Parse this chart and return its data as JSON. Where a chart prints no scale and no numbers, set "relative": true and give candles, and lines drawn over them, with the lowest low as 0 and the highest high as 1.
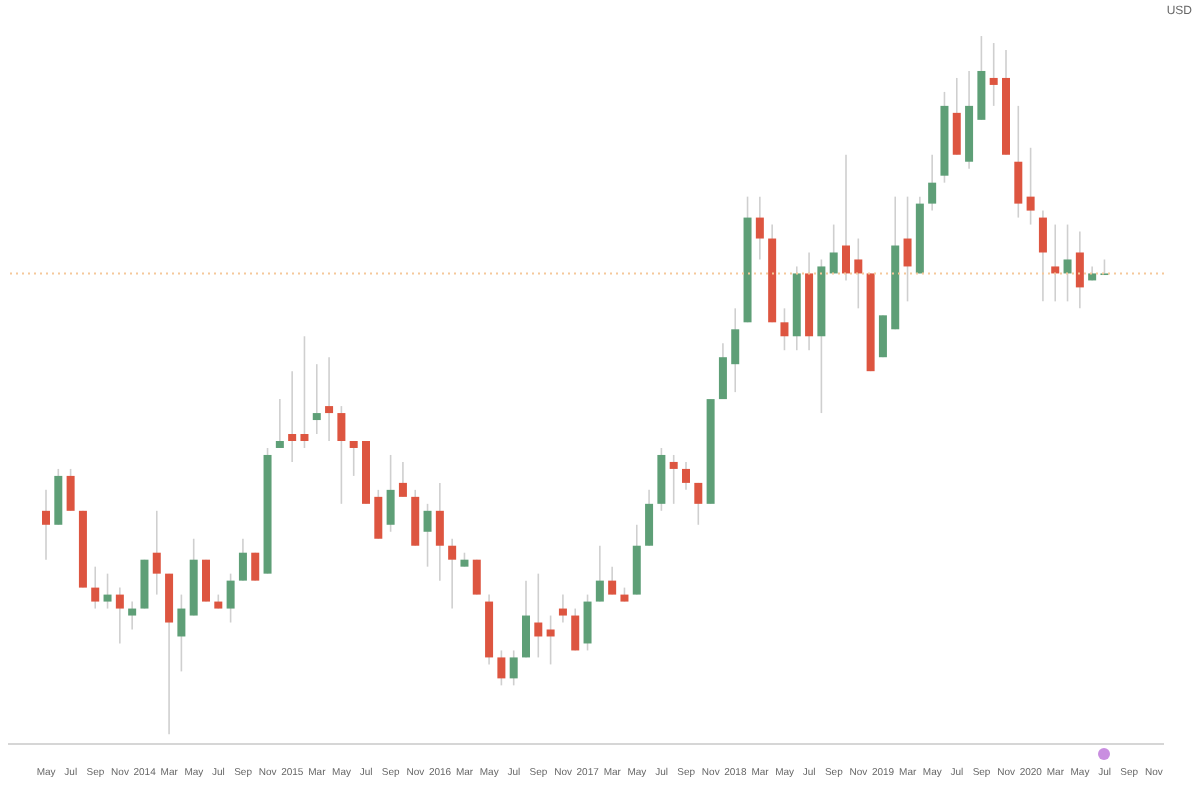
{
  "chart_data": {
    "type": "candlestick",
    "relative": true,
    "ylabel": "USD",
    "categories": [
      "May",
      null,
      "Jul",
      null,
      "Sep",
      null,
      "Nov",
      null,
      "2014",
      null,
      "Mar",
      null,
      "May",
      null,
      "Jul",
      null,
      "Sep",
      null,
      "Nov",
      null,
      "2015",
      null,
      "Mar",
      null,
      "May",
      null,
      "Jul",
      null,
      "Sep",
      null,
      "Nov",
      null,
      "2016",
      null,
      "Mar",
      null,
      "May",
      null,
      "Jul",
      null,
      "Sep",
      null,
      "Nov",
      null,
      "2017",
      null,
      "Mar",
      null,
      "May",
      null,
      "Jul",
      null,
      "Sep",
      null,
      "Nov",
      null,
      "2018",
      null,
      "Mar",
      null,
      "May",
      null,
      "Jul",
      null,
      "Sep",
      null,
      "Nov",
      null,
      "2019",
      null,
      "Mar",
      null,
      "May",
      null,
      "Jul",
      null,
      "Sep",
      null,
      "Nov",
      null,
      "2020",
      null,
      "Mar",
      null,
      "May",
      null,
      "Jul",
      null,
      "Sep",
      null,
      "Nov"
    ],
    "ohlc": [
      [
        0.32,
        0.35,
        0.25,
        0.3
      ],
      [
        0.3,
        0.38,
        0.3,
        0.37
      ],
      [
        0.37,
        0.38,
        0.32,
        0.32
      ],
      [
        0.32,
        0.32,
        0.21,
        0.21
      ],
      [
        0.21,
        0.24,
        0.18,
        0.19
      ],
      [
        0.19,
        0.23,
        0.18,
        0.2
      ],
      [
        0.2,
        0.21,
        0.13,
        0.18
      ],
      [
        0.17,
        0.19,
        0.15,
        0.18
      ],
      [
        0.18,
        0.25,
        0.18,
        0.25
      ],
      [
        0.26,
        0.32,
        0.2,
        0.23
      ],
      [
        0.23,
        0.23,
        0,
        0.16
      ],
      [
        0.14,
        0.2,
        0.09,
        0.18
      ],
      [
        0.17,
        0.28,
        0.17,
        0.25
      ],
      [
        0.25,
        0.25,
        0.19,
        0.19
      ],
      [
        0.19,
        0.2,
        0.18,
        0.18
      ],
      [
        0.18,
        0.23,
        0.16,
        0.22
      ],
      [
        0.22,
        0.28,
        0.22,
        0.26
      ],
      [
        0.26,
        0.26,
        0.22,
        0.22
      ],
      [
        0.23,
        0.41,
        0.23,
        0.4
      ],
      [
        0.41,
        0.48,
        0.41,
        0.42
      ],
      [
        0.43,
        0.52,
        0.39,
        0.42
      ],
      [
        0.43,
        0.57,
        0.41,
        0.42
      ],
      [
        0.45,
        0.53,
        0.43,
        0.46
      ],
      [
        0.47,
        0.54,
        0.42,
        0.46
      ],
      [
        0.46,
        0.47,
        0.33,
        0.42
      ],
      [
        0.42,
        0.42,
        0.37,
        0.41
      ],
      [
        0.42,
        0.42,
        0.33,
        0.33
      ],
      [
        0.34,
        0.35,
        0.28,
        0.28
      ],
      [
        0.3,
        0.4,
        0.29,
        0.35
      ],
      [
        0.36,
        0.39,
        0.34,
        0.34
      ],
      [
        0.34,
        0.35,
        0.27,
        0.27
      ],
      [
        0.29,
        0.33,
        0.24,
        0.32
      ],
      [
        0.32,
        0.36,
        0.22,
        0.27
      ],
      [
        0.27,
        0.28,
        0.18,
        0.25
      ],
      [
        0.24,
        0.26,
        0.24,
        0.25
      ],
      [
        0.25,
        0.25,
        0.2,
        0.2
      ],
      [
        0.19,
        0.2,
        0.1,
        0.11
      ],
      [
        0.11,
        0.12,
        0.07,
        0.08
      ],
      [
        0.08,
        0.12,
        0.07,
        0.11
      ],
      [
        0.11,
        0.22,
        0.11,
        0.17
      ],
      [
        0.16,
        0.23,
        0.11,
        0.14
      ],
      [
        0.15,
        0.17,
        0.1,
        0.14
      ],
      [
        0.18,
        0.2,
        0.16,
        0.17
      ],
      [
        0.17,
        0.18,
        0.12,
        0.12
      ],
      [
        0.13,
        0.2,
        0.12,
        0.19
      ],
      [
        0.19,
        0.27,
        0.19,
        0.22
      ],
      [
        0.22,
        0.24,
        0.2,
        0.2
      ],
      [
        0.2,
        0.21,
        0.19,
        0.19
      ],
      [
        0.2,
        0.3,
        0.2,
        0.27
      ],
      [
        0.27,
        0.35,
        0.27,
        0.33
      ],
      [
        0.33,
        0.41,
        0.32,
        0.4
      ],
      [
        0.39,
        0.4,
        0.33,
        0.38
      ],
      [
        0.38,
        0.39,
        0.35,
        0.36
      ],
      [
        0.36,
        0.36,
        0.3,
        0.33
      ],
      [
        0.33,
        0.48,
        0.33,
        0.48
      ],
      [
        0.48,
        0.56,
        0.48,
        0.54
      ],
      [
        0.53,
        0.61,
        0.49,
        0.58
      ],
      [
        0.59,
        0.77,
        0.59,
        0.74
      ],
      [
        0.74,
        0.77,
        0.68,
        0.71
      ],
      [
        0.71,
        0.73,
        0.59,
        0.59
      ],
      [
        0.59,
        0.61,
        0.55,
        0.57
      ],
      [
        0.57,
        0.67,
        0.55,
        0.66
      ],
      [
        0.66,
        0.69,
        0.55,
        0.57
      ],
      [
        0.57,
        0.68,
        0.46,
        0.67
      ],
      [
        0.66,
        0.73,
        0.66,
        0.69
      ],
      [
        0.7,
        0.83,
        0.65,
        0.66
      ],
      [
        0.68,
        0.71,
        0.61,
        0.66
      ],
      [
        0.66,
        0.66,
        0.52,
        0.52
      ],
      [
        0.54,
        0.6,
        0.54,
        0.6
      ],
      [
        0.58,
        0.77,
        0.58,
        0.7
      ],
      [
        0.71,
        0.77,
        0.62,
        0.67
      ],
      [
        0.66,
        0.77,
        0.66,
        0.76
      ],
      [
        0.76,
        0.83,
        0.75,
        0.79
      ],
      [
        0.8,
        0.92,
        0.79,
        0.9
      ],
      [
        0.89,
        0.94,
        0.83,
        0.83
      ],
      [
        0.82,
        0.95,
        0.81,
        0.9
      ],
      [
        0.88,
        1,
        0.88,
        0.95
      ],
      [
        0.94,
        0.99,
        0.9,
        0.93
      ],
      [
        0.94,
        0.98,
        0.83,
        0.83
      ],
      [
        0.82,
        0.9,
        0.74,
        0.76
      ],
      [
        0.77,
        0.84,
        0.73,
        0.75
      ],
      [
        0.74,
        0.75,
        0.62,
        0.69
      ],
      [
        0.67,
        0.73,
        0.62,
        0.66
      ],
      [
        0.66,
        0.73,
        0.62,
        0.68
      ],
      [
        0.69,
        0.72,
        0.61,
        0.64
      ],
      [
        0.65,
        0.67,
        0.65,
        0.66
      ],
      [
        0.66,
        0.68,
        0.66,
        0.66
      ],
      null,
      null,
      null,
      null
    ],
    "colors": [
      "#dd5540",
      "#5e9f77",
      "#dd5540",
      "#dd5540",
      "#dd5540",
      "#5e9f77",
      "#dd5540",
      "#5e9f77",
      "#5e9f77",
      "#dd5540",
      "#dd5540",
      "#5e9f77",
      "#5e9f77",
      "#dd5540",
      "#dd5540",
      "#5e9f77",
      "#5e9f77",
      "#dd5540",
      "#5e9f77",
      "#5e9f77",
      "#dd5540",
      "#dd5540",
      "#5e9f77",
      "#dd5540",
      "#dd5540",
      "#dd5540",
      "#dd5540",
      "#dd5540",
      "#5e9f77",
      "#dd5540",
      "#dd5540",
      "#5e9f77",
      "#dd5540",
      "#dd5540",
      "#5e9f77",
      "#dd5540",
      "#dd5540",
      "#dd5540",
      "#5e9f77",
      "#5e9f77",
      "#dd5540",
      "#dd5540",
      "#dd5540",
      "#dd5540",
      "#5e9f77",
      "#5e9f77",
      "#dd5540",
      "#dd5540",
      "#5e9f77",
      "#5e9f77",
      "#5e9f77",
      "#dd5540",
      "#dd5540",
      "#dd5540",
      "#5e9f77",
      "#5e9f77",
      "#5e9f77",
      "#5e9f77",
      "#dd5540",
      "#dd5540",
      "#dd5540",
      "#5e9f77",
      "#dd5540",
      "#5e9f77",
      "#5e9f77",
      "#dd5540",
      "#dd5540",
      "#dd5540",
      "#5e9f77",
      "#5e9f77",
      "#dd5540",
      "#5e9f77",
      "#5e9f77",
      "#5e9f77",
      "#dd5540",
      "#5e9f77",
      "#5e9f77",
      "#dd5540",
      "#dd5540",
      "#dd5540",
      "#dd5540",
      "#dd5540",
      "#dd5540",
      "#5e9f77",
      "#dd5540",
      "#5e9f77",
      "#5e9f77",
      null,
      null,
      null,
      null
    ],
    "ref_lines": [
      {
        "axis": "y",
        "value": 0.66,
        "color": "#f5c89a",
        "line_style": "dotted"
      }
    ]
  }
}
